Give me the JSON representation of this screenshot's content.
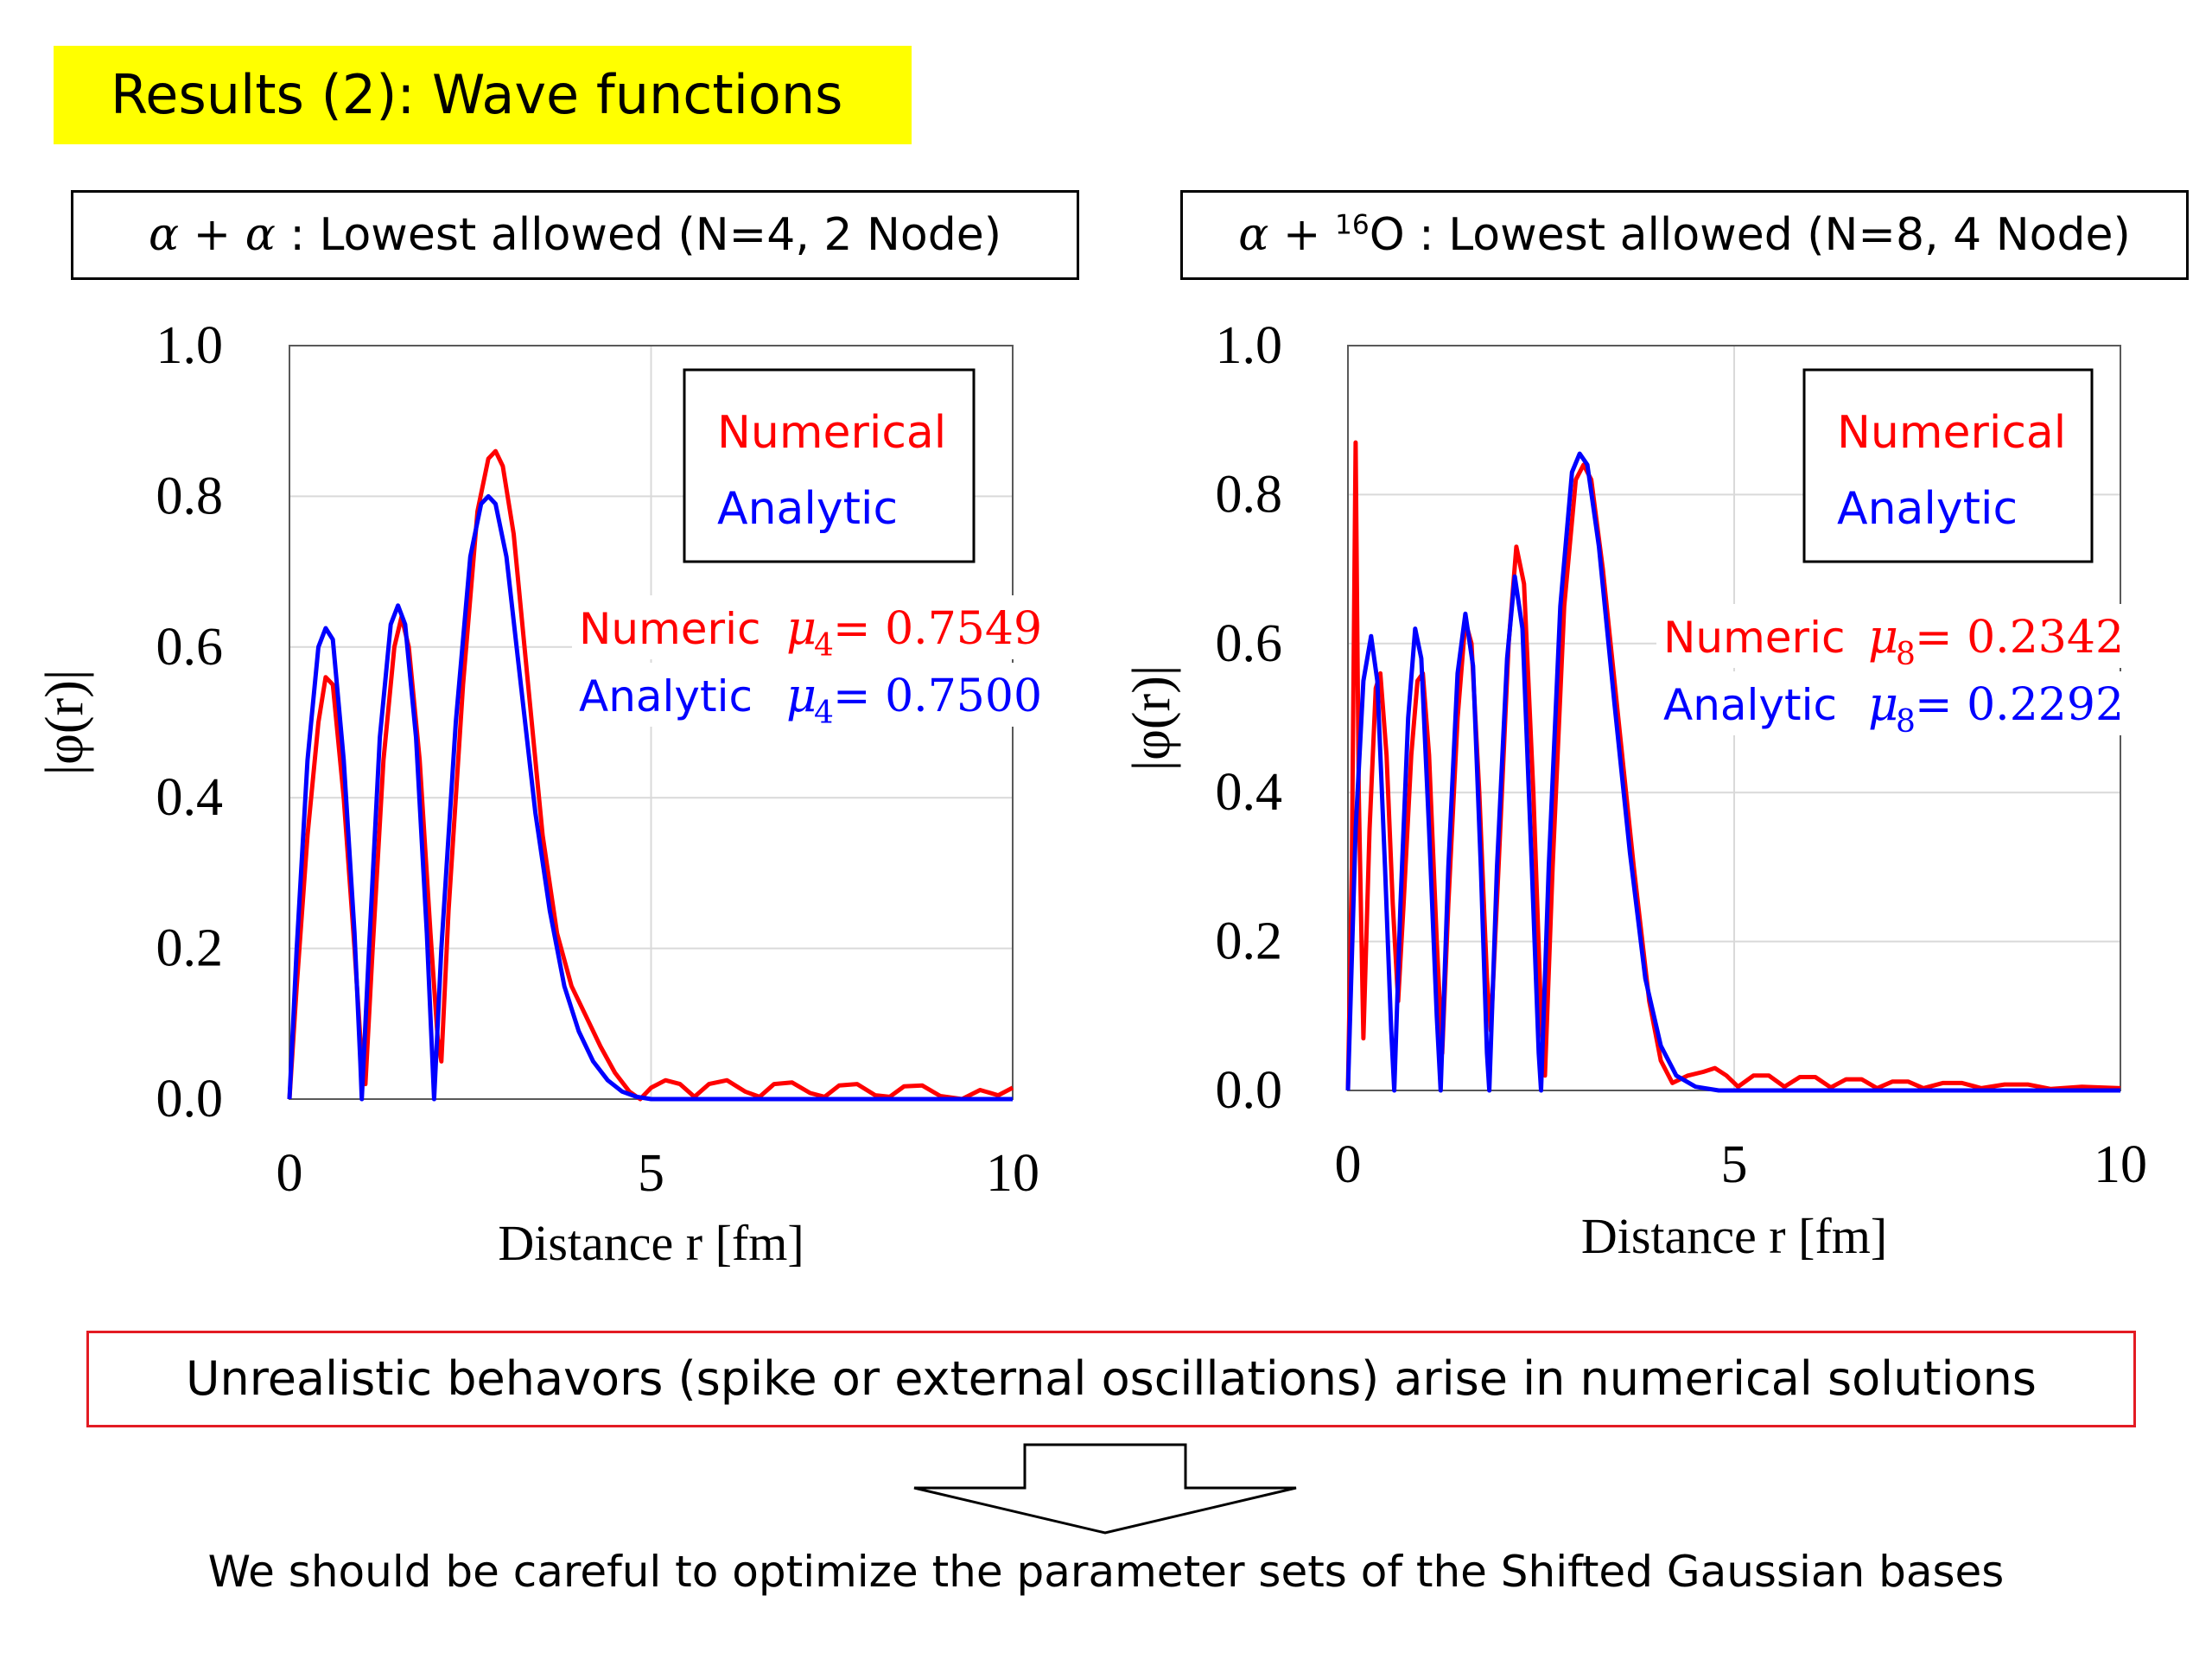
{
  "title": "Results (2): Wave functions",
  "panels": [
    {
      "caption_prefix": "α + α",
      "caption_rest": " : Lowest allowed (N=4, 2 Node)"
    },
    {
      "caption_prefix": "α + ",
      "caption_sup": "16",
      "caption_rest": "O : Lowest allowed (N=8, 4 Node)"
    }
  ],
  "note": "Unrealistic behavors (spike or external oscillations) arise in numerical solutions",
  "conclusion": "We should be careful to optimize the parameter sets of the Shifted Gaussian bases",
  "colors": {
    "numerical": "#ff0000",
    "analytic": "#0000ff",
    "title_bg": "#ffff00",
    "note_border": "#e31b23"
  },
  "chart_data": [
    {
      "type": "line",
      "xlabel": "Distance r [fm]",
      "ylabel": "|φ(r)|",
      "xlim": [
        0,
        10
      ],
      "ylim": [
        0,
        1.0
      ],
      "xticks": [
        "0",
        "5",
        "10"
      ],
      "yticks": [
        "0.0",
        "0.2",
        "0.4",
        "0.6",
        "0.8",
        "1.0"
      ],
      "grid": true,
      "legend": [
        "Numerical",
        "Analytic"
      ],
      "legend_position": "top-right",
      "annotations": [
        {
          "label": "Numeric",
          "mu": "μ",
          "sub": "4",
          "value": " = 0.7549",
          "color": "#ff0000"
        },
        {
          "label": "Analytic",
          "mu": "μ",
          "sub": "4",
          "value": " = 0.7500",
          "color": "#0000ff"
        }
      ],
      "series": [
        {
          "name": "Numerical",
          "color": "#ff0000",
          "points": [
            [
              0,
              0
            ],
            [
              0.1,
              0.15
            ],
            [
              0.25,
              0.35
            ],
            [
              0.4,
              0.5
            ],
            [
              0.5,
              0.56
            ],
            [
              0.6,
              0.55
            ],
            [
              0.75,
              0.4
            ],
            [
              0.9,
              0.2
            ],
            [
              1.0,
              0.05
            ],
            [
              1.05,
              0.02
            ],
            [
              1.15,
              0.2
            ],
            [
              1.3,
              0.45
            ],
            [
              1.45,
              0.6
            ],
            [
              1.55,
              0.64
            ],
            [
              1.65,
              0.6
            ],
            [
              1.8,
              0.45
            ],
            [
              1.95,
              0.22
            ],
            [
              2.05,
              0.08
            ],
            [
              2.1,
              0.05
            ],
            [
              2.2,
              0.25
            ],
            [
              2.4,
              0.55
            ],
            [
              2.6,
              0.78
            ],
            [
              2.75,
              0.85
            ],
            [
              2.85,
              0.86
            ],
            [
              2.95,
              0.84
            ],
            [
              3.1,
              0.75
            ],
            [
              3.3,
              0.55
            ],
            [
              3.5,
              0.35
            ],
            [
              3.7,
              0.22
            ],
            [
              3.9,
              0.15
            ],
            [
              4.1,
              0.11
            ],
            [
              4.3,
              0.07
            ],
            [
              4.5,
              0.035
            ],
            [
              4.7,
              0.01
            ],
            [
              4.85,
              0.0
            ],
            [
              5.0,
              0.015
            ],
            [
              5.2,
              0.025
            ],
            [
              5.4,
              0.02
            ],
            [
              5.6,
              0.003
            ],
            [
              5.8,
              0.02
            ],
            [
              6.05,
              0.025
            ],
            [
              6.3,
              0.01
            ],
            [
              6.5,
              0.003
            ],
            [
              6.7,
              0.02
            ],
            [
              6.95,
              0.022
            ],
            [
              7.2,
              0.008
            ],
            [
              7.4,
              0.003
            ],
            [
              7.6,
              0.018
            ],
            [
              7.85,
              0.02
            ],
            [
              8.1,
              0.005
            ],
            [
              8.3,
              0.003
            ],
            [
              8.5,
              0.017
            ],
            [
              8.75,
              0.018
            ],
            [
              9.0,
              0.004
            ],
            [
              9.3,
              0.0
            ],
            [
              9.55,
              0.012
            ],
            [
              9.8,
              0.005
            ],
            [
              10.0,
              0.015
            ]
          ]
        },
        {
          "name": "Analytic",
          "color": "#0000ff",
          "points": [
            [
              0,
              0
            ],
            [
              0.1,
              0.2
            ],
            [
              0.25,
              0.45
            ],
            [
              0.4,
              0.6
            ],
            [
              0.5,
              0.625
            ],
            [
              0.6,
              0.61
            ],
            [
              0.75,
              0.45
            ],
            [
              0.9,
              0.22
            ],
            [
              0.98,
              0.05
            ],
            [
              1.0,
              0.0
            ],
            [
              1.1,
              0.2
            ],
            [
              1.25,
              0.48
            ],
            [
              1.4,
              0.63
            ],
            [
              1.5,
              0.655
            ],
            [
              1.6,
              0.63
            ],
            [
              1.75,
              0.48
            ],
            [
              1.9,
              0.22
            ],
            [
              2.0,
              0.0
            ],
            [
              2.1,
              0.2
            ],
            [
              2.3,
              0.5
            ],
            [
              2.5,
              0.72
            ],
            [
              2.65,
              0.79
            ],
            [
              2.75,
              0.8
            ],
            [
              2.85,
              0.79
            ],
            [
              3.0,
              0.72
            ],
            [
              3.2,
              0.55
            ],
            [
              3.4,
              0.38
            ],
            [
              3.6,
              0.25
            ],
            [
              3.8,
              0.15
            ],
            [
              4.0,
              0.09
            ],
            [
              4.2,
              0.05
            ],
            [
              4.4,
              0.025
            ],
            [
              4.6,
              0.01
            ],
            [
              4.8,
              0.003
            ],
            [
              5.0,
              0.0
            ],
            [
              10.0,
              0.0
            ]
          ]
        }
      ]
    },
    {
      "type": "line",
      "xlabel": "Distance r [fm]",
      "ylabel": "|φ(r)|",
      "xlim": [
        0,
        10
      ],
      "ylim": [
        0,
        1.0
      ],
      "xticks": [
        "0",
        "5",
        "10"
      ],
      "yticks": [
        "0.0",
        "0.2",
        "0.4",
        "0.6",
        "0.8",
        "1.0"
      ],
      "grid": true,
      "legend": [
        "Numerical",
        "Analytic"
      ],
      "legend_position": "top-right",
      "annotations": [
        {
          "label": "Numeric",
          "mu": "μ",
          "sub": "8",
          "value": " = 0.2342",
          "color": "#ff0000"
        },
        {
          "label": "Analytic",
          "mu": "μ",
          "sub": "8",
          "value": " = 0.2292",
          "color": "#0000ff"
        }
      ],
      "series": [
        {
          "name": "Numerical",
          "color": "#ff0000",
          "points": [
            [
              0,
              0
            ],
            [
              0.05,
              0.3
            ],
            [
              0.1,
              0.87
            ],
            [
              0.14,
              0.4
            ],
            [
              0.2,
              0.07
            ],
            [
              0.28,
              0.35
            ],
            [
              0.36,
              0.54
            ],
            [
              0.42,
              0.56
            ],
            [
              0.5,
              0.45
            ],
            [
              0.58,
              0.25
            ],
            [
              0.65,
              0.12
            ],
            [
              0.72,
              0.25
            ],
            [
              0.82,
              0.45
            ],
            [
              0.9,
              0.55
            ],
            [
              0.97,
              0.56
            ],
            [
              1.05,
              0.45
            ],
            [
              1.15,
              0.2
            ],
            [
              1.22,
              0.05
            ],
            [
              1.3,
              0.25
            ],
            [
              1.42,
              0.5
            ],
            [
              1.52,
              0.63
            ],
            [
              1.6,
              0.6
            ],
            [
              1.7,
              0.4
            ],
            [
              1.8,
              0.15
            ],
            [
              1.85,
              0.08
            ],
            [
              1.95,
              0.3
            ],
            [
              2.08,
              0.6
            ],
            [
              2.18,
              0.73
            ],
            [
              2.28,
              0.68
            ],
            [
              2.4,
              0.4
            ],
            [
              2.5,
              0.1
            ],
            [
              2.55,
              0.02
            ],
            [
              2.65,
              0.3
            ],
            [
              2.8,
              0.65
            ],
            [
              2.95,
              0.82
            ],
            [
              3.05,
              0.84
            ],
            [
              3.15,
              0.82
            ],
            [
              3.3,
              0.7
            ],
            [
              3.5,
              0.5
            ],
            [
              3.7,
              0.3
            ],
            [
              3.9,
              0.12
            ],
            [
              4.05,
              0.04
            ],
            [
              4.2,
              0.01
            ],
            [
              4.4,
              0.02
            ],
            [
              4.6,
              0.025
            ],
            [
              4.75,
              0.03
            ],
            [
              4.9,
              0.02
            ],
            [
              5.05,
              0.005
            ],
            [
              5.25,
              0.02
            ],
            [
              5.45,
              0.02
            ],
            [
              5.65,
              0.005
            ],
            [
              5.85,
              0.018
            ],
            [
              6.05,
              0.018
            ],
            [
              6.25,
              0.004
            ],
            [
              6.45,
              0.015
            ],
            [
              6.65,
              0.015
            ],
            [
              6.85,
              0.003
            ],
            [
              7.05,
              0.012
            ],
            [
              7.25,
              0.012
            ],
            [
              7.45,
              0.003
            ],
            [
              7.7,
              0.01
            ],
            [
              7.95,
              0.01
            ],
            [
              8.2,
              0.003
            ],
            [
              8.5,
              0.008
            ],
            [
              8.8,
              0.008
            ],
            [
              9.1,
              0.002
            ],
            [
              9.5,
              0.005
            ],
            [
              10.0,
              0.003
            ]
          ]
        },
        {
          "name": "Analytic",
          "color": "#0000ff",
          "points": [
            [
              0,
              0
            ],
            [
              0.1,
              0.35
            ],
            [
              0.2,
              0.55
            ],
            [
              0.3,
              0.61
            ],
            [
              0.38,
              0.55
            ],
            [
              0.48,
              0.3
            ],
            [
              0.56,
              0.08
            ],
            [
              0.6,
              0.0
            ],
            [
              0.68,
              0.25
            ],
            [
              0.78,
              0.5
            ],
            [
              0.87,
              0.62
            ],
            [
              0.95,
              0.58
            ],
            [
              1.05,
              0.35
            ],
            [
              1.15,
              0.1
            ],
            [
              1.2,
              0.0
            ],
            [
              1.3,
              0.3
            ],
            [
              1.42,
              0.56
            ],
            [
              1.52,
              0.64
            ],
            [
              1.62,
              0.57
            ],
            [
              1.72,
              0.3
            ],
            [
              1.8,
              0.05
            ],
            [
              1.83,
              0.0
            ],
            [
              1.93,
              0.3
            ],
            [
              2.06,
              0.58
            ],
            [
              2.16,
              0.69
            ],
            [
              2.26,
              0.62
            ],
            [
              2.38,
              0.3
            ],
            [
              2.47,
              0.05
            ],
            [
              2.5,
              0.0
            ],
            [
              2.6,
              0.3
            ],
            [
              2.75,
              0.65
            ],
            [
              2.9,
              0.83
            ],
            [
              3.0,
              0.855
            ],
            [
              3.1,
              0.84
            ],
            [
              3.25,
              0.73
            ],
            [
              3.45,
              0.52
            ],
            [
              3.65,
              0.32
            ],
            [
              3.85,
              0.15
            ],
            [
              4.05,
              0.06
            ],
            [
              4.25,
              0.02
            ],
            [
              4.5,
              0.005
            ],
            [
              4.8,
              0.0
            ],
            [
              10.0,
              0.0
            ]
          ]
        }
      ]
    }
  ]
}
